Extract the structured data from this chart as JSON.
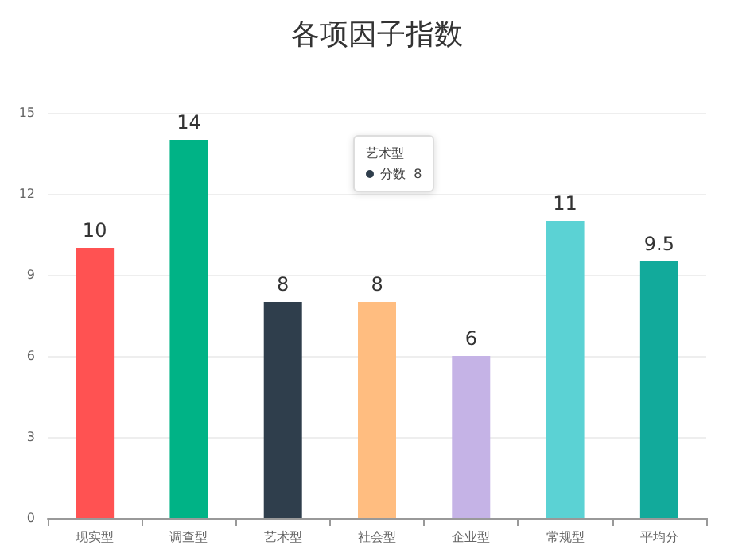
{
  "chart_data": {
    "type": "bar",
    "title": "各项因子指数",
    "categories": [
      "现实型",
      "调查型",
      "艺术型",
      "社会型",
      "企业型",
      "常规型",
      "平均分"
    ],
    "series": [
      {
        "values": [
          10,
          14,
          8,
          8,
          6,
          11,
          9.5
        ],
        "colors": [
          "#ff5252",
          "#00b386",
          "#2f3e4c",
          "#ffbd80",
          "#c5b3e6",
          "#5bd2d4",
          "#12aa9b"
        ]
      }
    ],
    "ylim": [
      0,
      15
    ],
    "yticks": [
      0,
      3,
      6,
      9,
      12,
      15
    ],
    "grid": "y",
    "data_labels": true,
    "annotations": [
      "艺术型",
      "分数  8"
    ]
  }
}
